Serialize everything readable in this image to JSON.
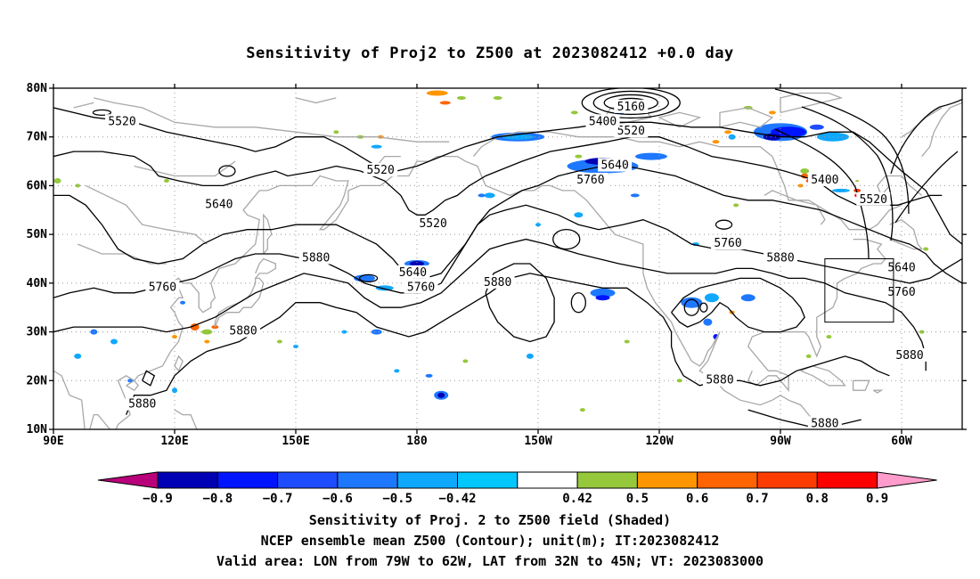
{
  "title": "Sensitivity of Proj2 to Z500 at 2023082412 +0.0 day",
  "map": {
    "lat_labels": [
      "80N",
      "70N",
      "60N",
      "50N",
      "40N",
      "30N",
      "20N",
      "10N"
    ],
    "lon_labels": [
      "90E",
      "120E",
      "150E",
      "180",
      "150W",
      "120W",
      "90W",
      "60W"
    ],
    "contour_labels": [
      {
        "text": "5520",
        "lon": 107,
        "lat": 73
      },
      {
        "text": "5520",
        "lon": 171,
        "lat": 63
      },
      {
        "text": "5520",
        "lon": 184,
        "lat": 52
      },
      {
        "text": "5520",
        "lon": 233,
        "lat": 71
      },
      {
        "text": "5520",
        "lon": 293,
        "lat": 57
      },
      {
        "text": "5400",
        "lon": 226,
        "lat": 73
      },
      {
        "text": "5400",
        "lon": 281,
        "lat": 61
      },
      {
        "text": "5160",
        "lon": 233,
        "lat": 76
      },
      {
        "text": "5640",
        "lon": 131,
        "lat": 56
      },
      {
        "text": "5640",
        "lon": 179,
        "lat": 42
      },
      {
        "text": "5640",
        "lon": 229,
        "lat": 64
      },
      {
        "text": "5640",
        "lon": 300,
        "lat": 43
      },
      {
        "text": "5760",
        "lon": 117,
        "lat": 39
      },
      {
        "text": "5760",
        "lon": 181,
        "lat": 39
      },
      {
        "text": "5760",
        "lon": 223,
        "lat": 61
      },
      {
        "text": "5760",
        "lon": 257,
        "lat": 48
      },
      {
        "text": "5760",
        "lon": 300,
        "lat": 38
      },
      {
        "text": "5880",
        "lon": 155,
        "lat": 45
      },
      {
        "text": "5880",
        "lon": 137,
        "lat": 30
      },
      {
        "text": "5880",
        "lon": 112,
        "lat": 15
      },
      {
        "text": "5880",
        "lon": 200,
        "lat": 40
      },
      {
        "text": "5880",
        "lon": 255,
        "lat": 20
      },
      {
        "text": "5880",
        "lon": 270,
        "lat": 45
      },
      {
        "text": "5880",
        "lon": 302,
        "lat": 25
      },
      {
        "text": "5880",
        "lon": 281,
        "lat": 11
      }
    ],
    "valid_box": {
      "lon_min": 281,
      "lon_max": 298,
      "lat_min": 32,
      "lat_max": 45
    }
  },
  "colorbar": {
    "colors": [
      "#b8007a",
      "#0000b4",
      "#0014ff",
      "#1e4cff",
      "#1e78ff",
      "#0fa8ff",
      "#00c8ff",
      "#ffffff",
      "#96c83c",
      "#ff9600",
      "#ff6400",
      "#ff3c00",
      "#ff0000",
      "#ff9ccc"
    ],
    "ticks": [
      "−0.9",
      "−0.8",
      "−0.7",
      "−0.6",
      "−0.5",
      "−0.42",
      "0.42",
      "0.5",
      "0.6",
      "0.7",
      "0.8",
      "0.9"
    ]
  },
  "captions": {
    "line1": "Sensitivity of Proj. 2 to Z500 field (Shaded)",
    "line2": "NCEP ensemble mean Z500 (Contour); unit(m); IT:2023082412",
    "line3": "Valid area: LON from 79W to 62W, LAT from 32N to 45N; VT: 2023083000"
  }
}
